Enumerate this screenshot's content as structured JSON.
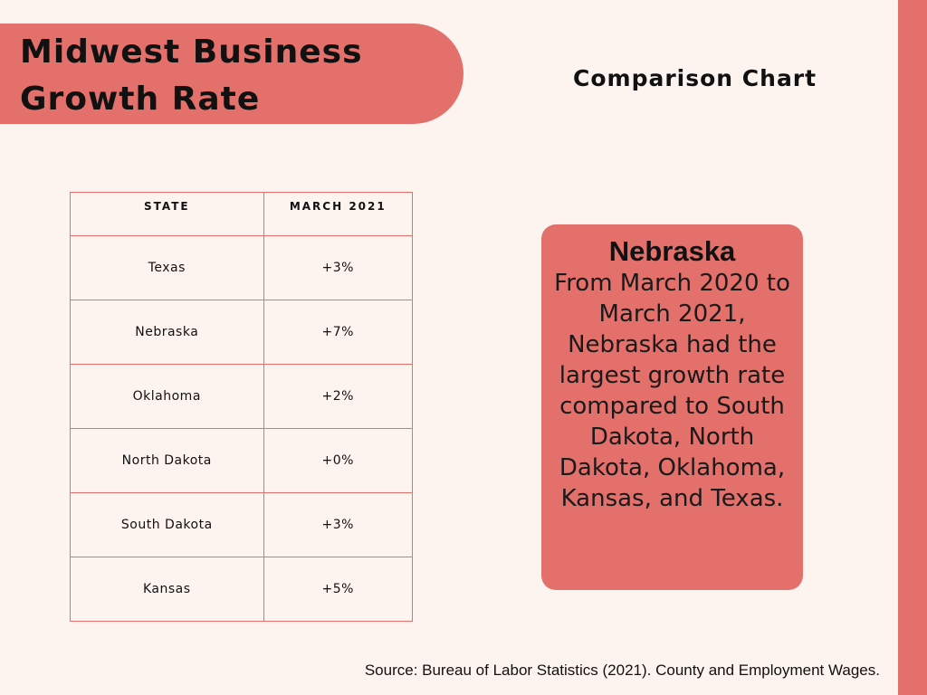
{
  "header": {
    "title_line1": "Midwest Business",
    "title_line2": "Growth Rate",
    "subtitle": "Comparison Chart"
  },
  "chart_data": {
    "type": "table",
    "title": "Midwest Business Growth Rate",
    "columns": [
      "STATE",
      "MARCH 2021"
    ],
    "rows": [
      {
        "state": "Texas",
        "value": "+3%"
      },
      {
        "state": "Nebraska",
        "value": "+7%"
      },
      {
        "state": "Oklahoma",
        "value": "+2%"
      },
      {
        "state": "North Dakota",
        "value": "+0%"
      },
      {
        "state": "South Dakota",
        "value": "+3%"
      },
      {
        "state": "Kansas",
        "value": "+5%"
      }
    ]
  },
  "callout": {
    "heading": "Nebraska",
    "text": "From March 2020 to March 2021, Nebraska had the largest growth rate compared to South Dakota, North Dakota, Oklahoma, Kansas, and Texas."
  },
  "footer": {
    "source": "Source: Bureau of Labor Statistics (2021). County and Employment Wages."
  },
  "colors": {
    "background": "#fdf4ef",
    "accent": "#e3706b"
  }
}
